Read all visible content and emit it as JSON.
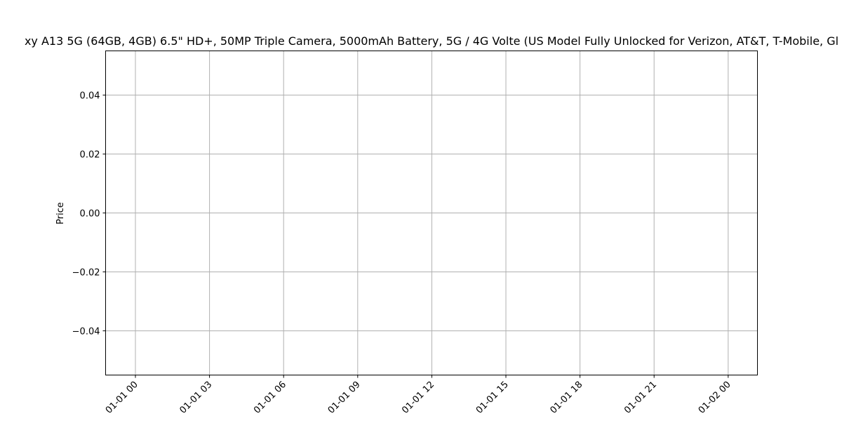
{
  "chart_data": {
    "type": "line",
    "title": "xy A13 5G (64GB, 4GB) 6.5\" HD+, 50MP Triple Camera, 5000mAh Battery, 5G / 4G Volte (US Model Fully Unlocked for Verizon, AT&T, T-Mobile, Gl",
    "xlabel": "",
    "ylabel": "Price",
    "x_ticks": [
      "01-01 00",
      "01-01 03",
      "01-01 06",
      "01-01 09",
      "01-01 12",
      "01-01 15",
      "01-01 18",
      "01-01 21",
      "01-02 00"
    ],
    "xlim": [
      "01-01 00",
      "01-02 00"
    ],
    "y_ticks": [
      "0.04",
      "0.02",
      "0.00",
      "−0.02",
      "−0.04"
    ],
    "y_tick_values": [
      0.04,
      0.02,
      0.0,
      -0.02,
      -0.04
    ],
    "ylim": [
      -0.055,
      0.055
    ],
    "series": [],
    "grid": true
  }
}
